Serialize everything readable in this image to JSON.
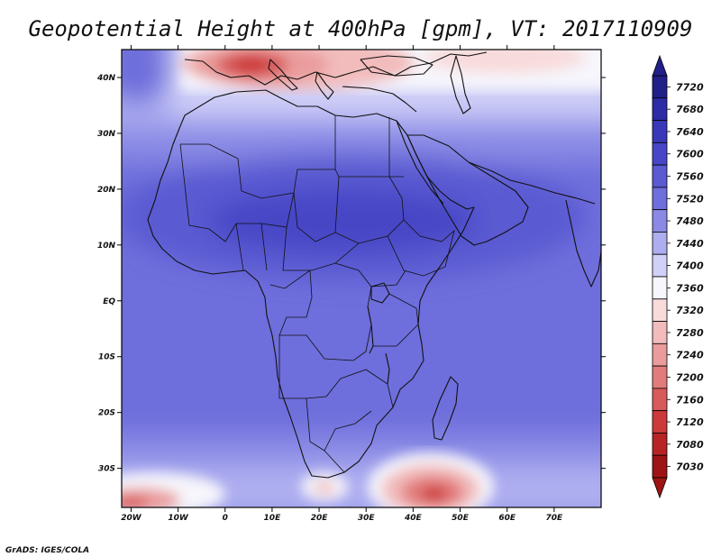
{
  "title": "Geopotential Height at 400hPa [gpm], VT: 2017110909",
  "credit": "GrADS: IGES/COLA",
  "map": {
    "lat_labels": [
      "40N",
      "30N",
      "20N",
      "10N",
      "EQ",
      "10S",
      "20S",
      "30S"
    ],
    "lon_labels": [
      "20W",
      "10W",
      "0",
      "10E",
      "20E",
      "30E",
      "40E",
      "50E",
      "60E",
      "70E"
    ],
    "lon_range": [
      -22,
      80
    ],
    "lat_range": [
      -37,
      45
    ]
  },
  "colorbar": {
    "levels": [
      "7720",
      "7680",
      "7640",
      "7600",
      "7560",
      "7520",
      "7480",
      "7440",
      "7400",
      "7360",
      "7320",
      "7280",
      "7240",
      "7200",
      "7160",
      "7120",
      "7080",
      "7030"
    ],
    "colors": [
      "#211f88",
      "#2c2ca6",
      "#3838b8",
      "#4646c6",
      "#5a5ad2",
      "#6e6edc",
      "#8a8ae6",
      "#adadf0",
      "#d0d0f8",
      "#f6f6fc",
      "#f8dcdc",
      "#f2bcbc",
      "#ea9c9c",
      "#e27c7c",
      "#d85a5a",
      "#cc3a3a",
      "#b82424",
      "#9e1414"
    ]
  }
}
